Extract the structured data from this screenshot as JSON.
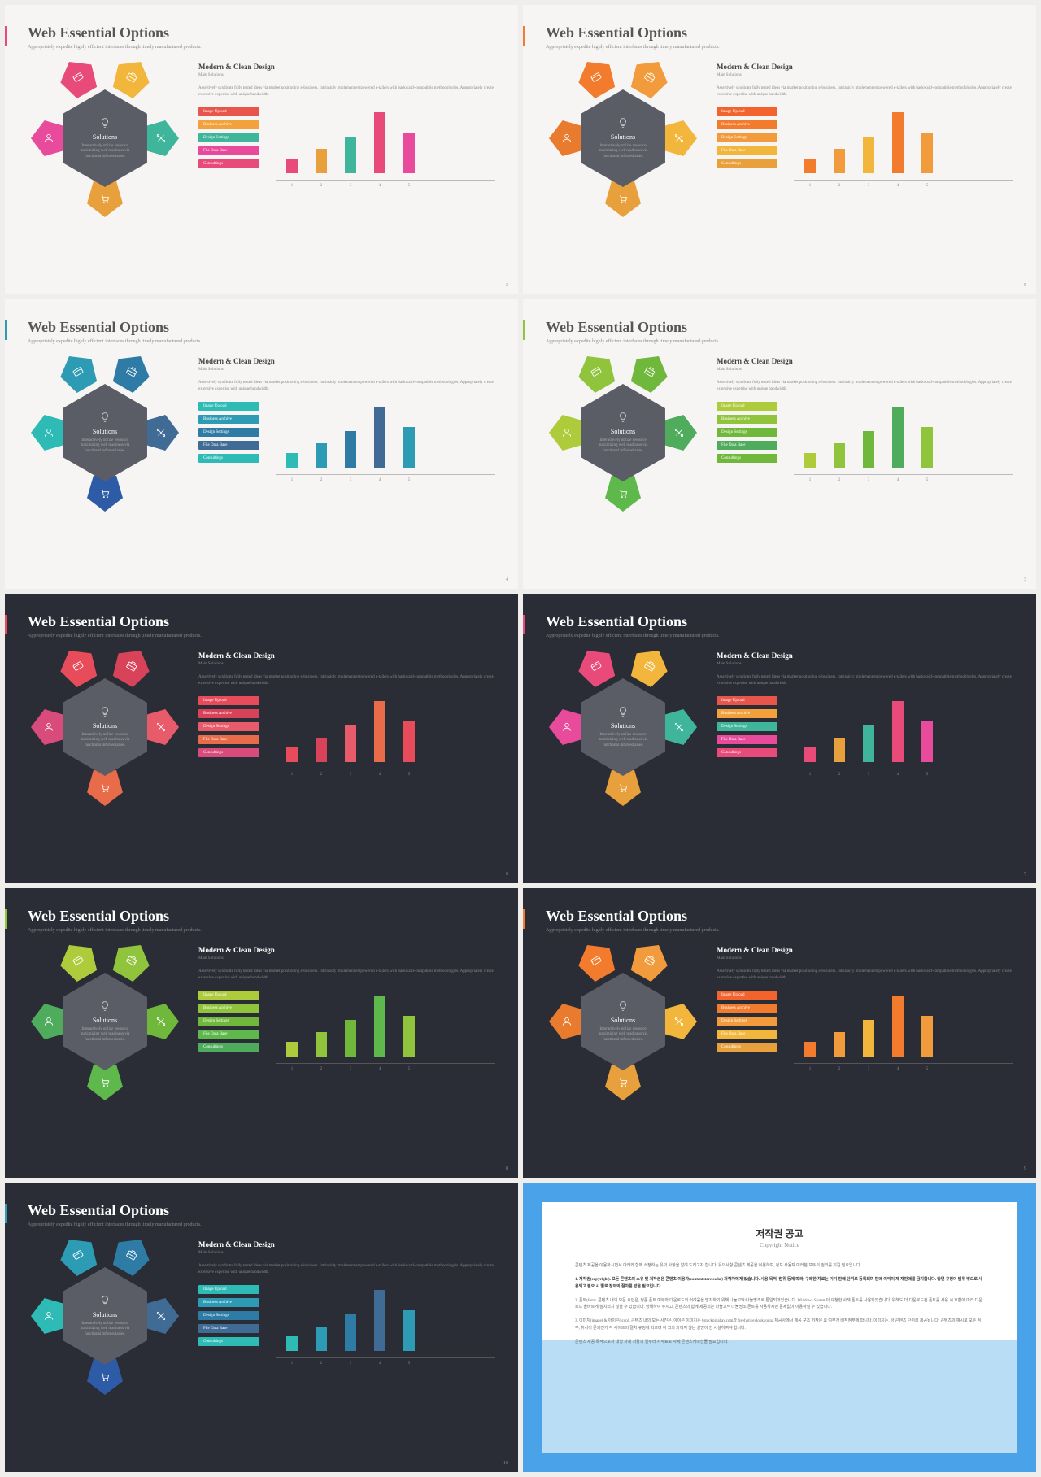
{
  "common": {
    "title": "Web Essential Options",
    "subtitle": "Appropriately expedite highly efficient interfaces through timely manufactured products.",
    "hexTitle": "Solutions",
    "hexDesc": "Interactively utilize resource maximizing web readiness via functional infomediaries.",
    "rightTitle": "Modern & Clean Design",
    "rightSub": "Main Solutions",
    "rightBody": "Assertively syndicate fully tested ideas via market positioning e-business. Intrinsicly implement empowered e-tailers with backward-compatible methodologies. Appropriately create extensive expertise with unique bandwidth.",
    "tags": [
      "Image Upload",
      "Business Archive",
      "Design Settings",
      "File Data Base",
      "Consultings"
    ],
    "chartValues": [
      18,
      30,
      45,
      75,
      50
    ],
    "chartLabels": [
      "1",
      "2",
      "3",
      "4",
      "5"
    ]
  },
  "slides": [
    {
      "theme": "light",
      "page": "3",
      "accent": "#e84b7a",
      "petals": [
        "#e84b7a",
        "#f2b63c",
        "#3fb59c",
        "#e8a03c",
        "#e84b9c"
      ],
      "tagColors": [
        "#e8564b",
        "#f2a13c",
        "#3fb59c",
        "#e84b9c",
        "#e84b7a"
      ],
      "barColors": [
        "#e84b7a",
        "#e8a03c",
        "#3fb59c",
        "#e84b7a",
        "#e84b9c"
      ]
    },
    {
      "theme": "light",
      "page": "5",
      "accent": "#f27b2e",
      "petals": [
        "#f27b2e",
        "#f29b3c",
        "#f2b63c",
        "#e8a03c",
        "#e87b2e"
      ],
      "tagColors": [
        "#f2632e",
        "#f27b2e",
        "#f29b3c",
        "#f2b63c",
        "#e8a03c"
      ],
      "barColors": [
        "#f27b2e",
        "#f29b3c",
        "#f2b63c",
        "#f27b2e",
        "#f29b3c"
      ]
    },
    {
      "theme": "light",
      "page": "4",
      "accent": "#2e9bb5",
      "petals": [
        "#2e9bb5",
        "#2e7ba5",
        "#3f6b95",
        "#2e5ba5",
        "#2ebbb5"
      ],
      "tagColors": [
        "#2ebbb5",
        "#2e9bb5",
        "#2e7ba5",
        "#3f6b95",
        "#2ebbb5"
      ],
      "barColors": [
        "#2ebbb5",
        "#2e9bb5",
        "#2e7ba5",
        "#3f6b95",
        "#2e9bb5"
      ]
    },
    {
      "theme": "light",
      "page": "3",
      "accent": "#8fc43c",
      "petals": [
        "#8fc43c",
        "#6fb83c",
        "#4fac5c",
        "#5fb84c",
        "#aecb3c"
      ],
      "tagColors": [
        "#aecb3c",
        "#8fc43c",
        "#6fb83c",
        "#4fac5c",
        "#6fb83c"
      ],
      "barColors": [
        "#aecb3c",
        "#8fc43c",
        "#6fb83c",
        "#4fac5c",
        "#8fc43c"
      ]
    },
    {
      "theme": "dark",
      "page": "8",
      "accent": "#e84b5a",
      "petals": [
        "#e84b5a",
        "#d9435a",
        "#e85b6a",
        "#e86b4a",
        "#d94b7a"
      ],
      "tagColors": [
        "#e84b5a",
        "#d9435a",
        "#e85b6a",
        "#e86b4a",
        "#d94b7a"
      ],
      "barColors": [
        "#e84b5a",
        "#d9435a",
        "#e85b6a",
        "#e86b4a",
        "#e84b5a"
      ]
    },
    {
      "theme": "dark",
      "page": "7",
      "accent": "#e84b7a",
      "petals": [
        "#e84b7a",
        "#f2b63c",
        "#3fb59c",
        "#e8a03c",
        "#e84b9c"
      ],
      "tagColors": [
        "#e8564b",
        "#f2a13c",
        "#3fb59c",
        "#e84b9c",
        "#e84b7a"
      ],
      "barColors": [
        "#e84b7a",
        "#e8a03c",
        "#3fb59c",
        "#e84b7a",
        "#e84b9c"
      ]
    },
    {
      "theme": "dark",
      "page": "8",
      "accent": "#8fc43c",
      "petals": [
        "#aecb3c",
        "#8fc43c",
        "#6fb83c",
        "#5fb84c",
        "#4fac5c"
      ],
      "tagColors": [
        "#aecb3c",
        "#8fc43c",
        "#6fb83c",
        "#5fb84c",
        "#4fac5c"
      ],
      "barColors": [
        "#aecb3c",
        "#8fc43c",
        "#6fb83c",
        "#5fb84c",
        "#8fc43c"
      ]
    },
    {
      "theme": "dark",
      "page": "9",
      "accent": "#f27b2e",
      "petals": [
        "#f27b2e",
        "#f29b3c",
        "#f2b63c",
        "#e8a03c",
        "#e87b2e"
      ],
      "tagColors": [
        "#f2632e",
        "#f27b2e",
        "#f29b3c",
        "#f2b63c",
        "#e8a03c"
      ],
      "barColors": [
        "#f27b2e",
        "#f29b3c",
        "#f2b63c",
        "#f27b2e",
        "#f29b3c"
      ]
    },
    {
      "theme": "dark",
      "page": "10",
      "accent": "#2e9bb5",
      "petals": [
        "#2e9bb5",
        "#2e7ba5",
        "#3f6b95",
        "#2e5ba5",
        "#2ebbb5"
      ],
      "tagColors": [
        "#2ebbb5",
        "#2e9bb5",
        "#2e7ba5",
        "#3f6b95",
        "#2ebbb5"
      ],
      "barColors": [
        "#2ebbb5",
        "#2e9bb5",
        "#2e7ba5",
        "#3f6b95",
        "#2e9bb5"
      ]
    }
  ],
  "copyright": {
    "title": "저작권 공고",
    "sub": "Copyright Notice",
    "p1": "콘텐츠 제공을 이용하시면서 아래와 함께 소정하는 유의 사항을 알려 드리고자 합니다. 유의사항 콘텐츠 제공을 이용하여, 정보 사용자 여러분 모두의 권리를 지킬 필요입니다.",
    "p2": "1. 저작권(copyright). 모든 콘텐츠의 소유 및 저작권은 콘텐츠 이용자(contentstore.co.kr) 저작자에게 있습니다. 사용 목적, 범위 등에 따라, 구매한 자료는 기기 판매 단위로 등록되며 판매 이익이 제 재판매를 금지합니다. 당연 규정이 범위 밖으로 사용되고 필요 시 별로 정의의 절차를 밟을 필요입니다.",
    "p3": "2. 폰트(font). 콘텐츠 내의 모든 시안은, 정품 폰트 여부와 다운로드의 어려움을 방지하기 위해 나눔고딕/나눔명조로 통일되어있습니다. Windows System이 요청한 사례 폰트를 사용되었습니다. 위해도 더 다운로드된 폰트를 사용 시 호환에 따라 다운로드 올바르게 설치되지 않을 수 있습니다. 양해하여 주시고, 콘텐츠의 함께 제공되는 나눔고딕 나눔명조 폰트를 사용하시면 문제없이 이용하실 수 있습니다.",
    "p4": "3. 이미지(image) & 아이콘(icon). 콘텐츠 내의 모든 사진은, 아이콘 이미지는 #stockpixabay.com과 freelygiveylookyouna 제공사에서 제공 구조 저작은 요 여부가 배적첨부에 합니다. 이미지는, 당 콘텐츠 단위로 제공됩니다. 콘텐츠의 예시로 모두 첨부, 취사어 문의전거 각 사이트의 절차 규정에 따르며 이 외의 차이지 않는 설명이 한 시설하여야 합니다.",
    "p5": "콘텐츠 제공 목적으로서 내형 사제 저활의 일부러 저작료로 사제 콘텐츠커미션들 필요입니다."
  }
}
